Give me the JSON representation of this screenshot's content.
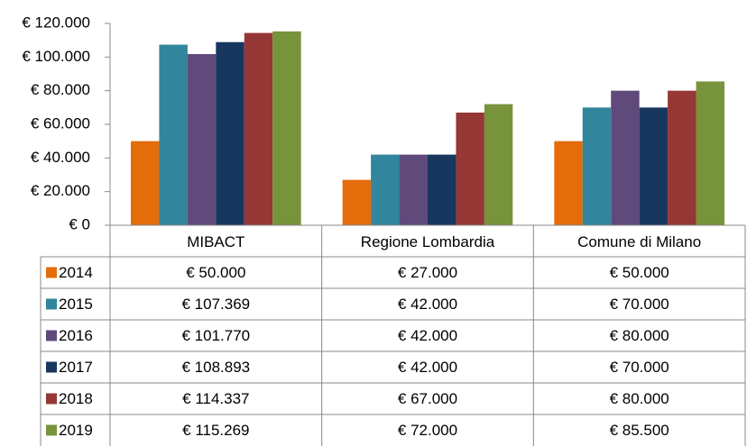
{
  "chart_data": {
    "type": "bar",
    "categories": [
      "MIBACT",
      "Regione Lombardia",
      "Comune di Milano"
    ],
    "series": [
      {
        "name": "2014",
        "color": "#e46c0a",
        "values": [
          50000,
          27000,
          50000
        ],
        "value_labels": [
          "€ 50.000",
          "€ 27.000",
          "€ 50.000"
        ]
      },
      {
        "name": "2015",
        "color": "#31859c",
        "values": [
          107369,
          42000,
          70000
        ],
        "value_labels": [
          "€ 107.369",
          "€ 42.000",
          "€ 70.000"
        ]
      },
      {
        "name": "2016",
        "color": "#604a7b",
        "values": [
          101770,
          42000,
          80000
        ],
        "value_labels": [
          "€ 101.770",
          "€ 42.000",
          "€ 80.000"
        ]
      },
      {
        "name": "2017",
        "color": "#17375e",
        "values": [
          108893,
          42000,
          70000
        ],
        "value_labels": [
          "€ 108.893",
          "€ 42.000",
          "€ 70.000"
        ]
      },
      {
        "name": "2018",
        "color": "#953735",
        "values": [
          114337,
          67000,
          80000
        ],
        "value_labels": [
          "€ 114.337",
          "€ 67.000",
          "€ 80.000"
        ]
      },
      {
        "name": "2019",
        "color": "#77933c",
        "values": [
          115269,
          72000,
          85500
        ],
        "value_labels": [
          "€ 115.269",
          "€ 72.000",
          "€ 85.500"
        ]
      }
    ],
    "ylim": [
      0,
      120000
    ],
    "yticks": [
      {
        "value": 0,
        "label": "€ 0"
      },
      {
        "value": 20000,
        "label": "€ 20.000"
      },
      {
        "value": 40000,
        "label": "€ 40.000"
      },
      {
        "value": 60000,
        "label": "€ 60.000"
      },
      {
        "value": 80000,
        "label": "€ 80.000"
      },
      {
        "value": 100000,
        "label": "€ 100.000"
      },
      {
        "value": 120000,
        "label": "€ 120.000"
      }
    ],
    "grid": false
  }
}
